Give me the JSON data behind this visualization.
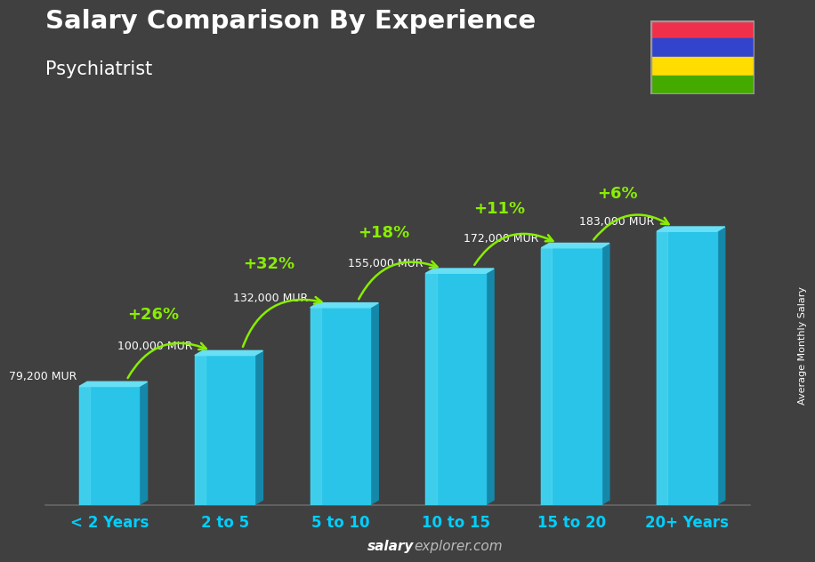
{
  "title": "Salary Comparison By Experience",
  "subtitle": "Psychiatrist",
  "categories": [
    "< 2 Years",
    "2 to 5",
    "5 to 10",
    "10 to 15",
    "15 to 20",
    "20+ Years"
  ],
  "values": [
    79200,
    100000,
    132000,
    155000,
    172000,
    183000
  ],
  "value_labels": [
    "79,200 MUR",
    "100,000 MUR",
    "132,000 MUR",
    "155,000 MUR",
    "172,000 MUR",
    "183,000 MUR"
  ],
  "pct_changes": [
    "+26%",
    "+32%",
    "+18%",
    "+11%",
    "+6%"
  ],
  "bar_face_color": "#29c4e8",
  "bar_side_color": "#1588aa",
  "bar_top_color": "#68dff5",
  "bar_highlight": "#50d8f0",
  "bg_color": "#404040",
  "title_color": "#ffffff",
  "subtitle_color": "#ffffff",
  "label_color": "#ffffff",
  "pct_color": "#88ee00",
  "xlabel_color": "#00cfff",
  "ylabel_text": "Average Monthly Salary",
  "footer_salary": "salary",
  "footer_rest": "explorer.com",
  "flag_colors": [
    "#f0304a",
    "#3344cc",
    "#ffdd00",
    "#44aa00"
  ],
  "ylim_max": 210000,
  "bar_width": 0.52,
  "side_depth": 0.07
}
